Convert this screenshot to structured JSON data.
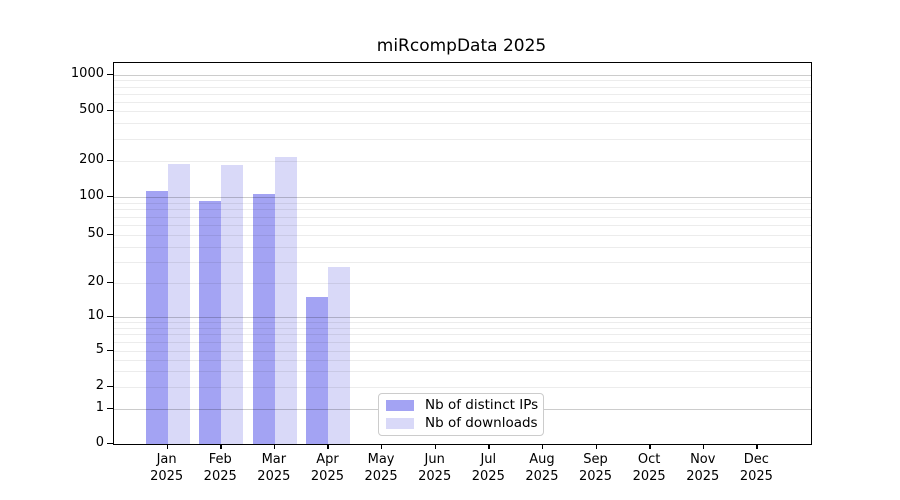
{
  "chart_data": {
    "type": "bar",
    "title": "miRcompData 2025",
    "year_label": "2025",
    "categories": [
      "Jan",
      "Feb",
      "Mar",
      "Apr",
      "May",
      "Jun",
      "Jul",
      "Aug",
      "Sep",
      "Oct",
      "Nov",
      "Dec"
    ],
    "series": [
      {
        "name": "Nb of distinct IPs",
        "color": "#a3a3f3",
        "values": [
          112,
          93,
          106,
          15,
          null,
          null,
          null,
          null,
          null,
          null,
          null,
          null
        ]
      },
      {
        "name": "Nb of downloads",
        "color": "#d9d9f8",
        "values": [
          190,
          185,
          215,
          27,
          null,
          null,
          null,
          null,
          null,
          null,
          null,
          null
        ]
      }
    ],
    "y_ticks": [
      0,
      1,
      2,
      5,
      10,
      20,
      50,
      100,
      200,
      500,
      1000
    ],
    "y_scale": "symlog",
    "ylim": [
      0,
      1100
    ],
    "grid": true,
    "legend_position": "bottom-center"
  },
  "colors": {
    "major_grid": "#cccccc",
    "minor_grid": "#ececec",
    "axis": "#000000",
    "background": "#ffffff"
  }
}
